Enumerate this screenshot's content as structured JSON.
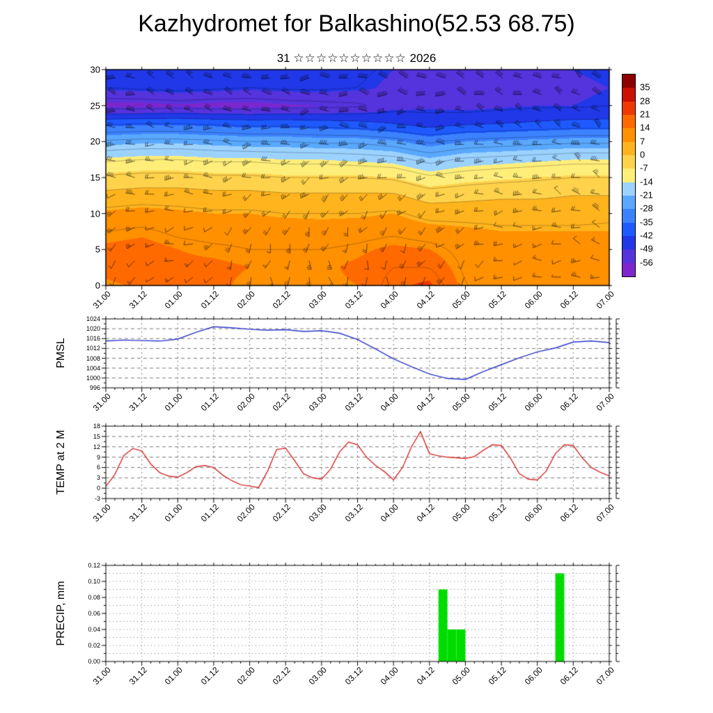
{
  "header": {
    "title": "Kazhydromet for Balkashino(52.53 68.75)",
    "day": "31",
    "stars": "☆☆☆☆☆☆☆☆☆☆",
    "year": "2026"
  },
  "time_axis": {
    "labels": [
      "31.00",
      "31.12",
      "01.00",
      "01.12",
      "02.00",
      "02.12",
      "03.00",
      "03.12",
      "04.00",
      "04.12",
      "05.00",
      "05.12",
      "06.00",
      "06.12",
      "07.00"
    ],
    "total_hours": 168,
    "major_step_hours": 12,
    "minor_step_hours": 3
  },
  "chart_data": [
    {
      "id": "cross_section",
      "type": "heatmap",
      "label": "",
      "ylim": [
        0,
        30
      ],
      "yticks": [
        0,
        5,
        10,
        15,
        20,
        25,
        30
      ],
      "heights": [
        0,
        2.5,
        5,
        7.5,
        10,
        12.5,
        15,
        17.5,
        20,
        22.5,
        25,
        27.5,
        30
      ],
      "temps_by_height_row": [
        [
          13,
          15,
          14,
          15,
          13,
          12,
          13,
          14,
          20,
          22,
          12,
          11,
          10,
          9,
          9
        ],
        [
          16,
          17,
          15,
          15,
          14,
          13,
          13,
          15,
          18,
          18,
          11,
          10,
          10,
          9,
          9
        ],
        [
          15,
          16,
          14,
          13,
          12,
          12,
          12,
          13,
          15,
          14,
          10,
          9,
          9,
          8,
          8
        ],
        [
          12,
          13,
          11,
          10,
          10,
          10,
          9,
          10,
          11,
          9,
          8,
          7,
          7,
          7,
          7
        ],
        [
          8,
          9,
          8,
          7,
          7,
          6,
          6,
          6,
          7,
          4,
          4,
          4,
          4,
          4,
          5
        ],
        [
          2,
          3,
          3,
          2,
          2,
          1,
          1,
          1,
          1,
          -3,
          -2,
          -1,
          -1,
          0,
          0
        ],
        [
          -5,
          -4,
          -4,
          -5,
          -5,
          -6,
          -6,
          -6,
          -7,
          -11,
          -9,
          -8,
          -7,
          -6,
          -6
        ],
        [
          -13,
          -12,
          -12,
          -13,
          -13,
          -14,
          -14,
          -15,
          -16,
          -20,
          -17,
          -16,
          -15,
          -14,
          -14
        ],
        [
          -23,
          -22,
          -22,
          -23,
          -24,
          -24,
          -25,
          -25,
          -27,
          -31,
          -28,
          -27,
          -26,
          -25,
          -25
        ],
        [
          -37,
          -36,
          -36,
          -37,
          -38,
          -38,
          -39,
          -40,
          -42,
          -45,
          -43,
          -42,
          -41,
          -40,
          -40
        ],
        [
          -58,
          -58,
          -57,
          -58,
          -58,
          -57,
          -56,
          -55,
          -51,
          -50,
          -51,
          -50,
          -49,
          -49,
          -48
        ],
        [
          -48,
          -47,
          -46,
          -47,
          -48,
          -47,
          -47,
          -48,
          -50,
          -53,
          -52,
          -51,
          -50,
          -50,
          -49
        ],
        [
          -45,
          -44,
          -44,
          -45,
          -46,
          -46,
          -46,
          -47,
          -49,
          -51,
          -51,
          -50,
          -49,
          -49,
          -48
        ]
      ],
      "wind_barbs": {
        "heights": [
          0,
          7.5,
          15,
          22.5,
          30
        ],
        "times_hours": [
          0,
          24,
          48,
          72,
          96,
          120,
          144,
          168
        ],
        "dirs_deg": [
          [
            210,
            230,
            190,
            160,
            180,
            210,
            260,
            280
          ],
          [
            240,
            255,
            220,
            200,
            210,
            240,
            275,
            290
          ],
          [
            265,
            270,
            250,
            235,
            245,
            265,
            285,
            300
          ],
          [
            280,
            285,
            270,
            260,
            268,
            278,
            292,
            302
          ],
          [
            290,
            292,
            284,
            278,
            286,
            292,
            298,
            306
          ]
        ],
        "speeds_kt": [
          [
            10,
            8,
            12,
            10,
            14,
            12,
            10,
            12
          ],
          [
            16,
            13,
            18,
            16,
            20,
            18,
            15,
            18
          ],
          [
            24,
            20,
            26,
            28,
            30,
            25,
            22,
            25
          ],
          [
            34,
            30,
            36,
            40,
            44,
            36,
            30,
            35
          ],
          [
            40,
            36,
            44,
            50,
            55,
            45,
            40,
            45
          ]
        ]
      },
      "colorbar": {
        "tick_labels": [
          "35",
          "28",
          "21",
          "14",
          "7",
          "0",
          "-7",
          "-14",
          "-21",
          "-28",
          "-35",
          "-42",
          "-49",
          "-56"
        ],
        "thresholds": [
          -56,
          -49,
          -42,
          -35,
          -28,
          -21,
          -14,
          -7,
          0,
          7,
          14,
          21,
          28,
          35
        ],
        "colors_low_to_high": [
          "#7d26cd",
          "#5533dd",
          "#2038e8",
          "#1e5aff",
          "#3c82ff",
          "#5aa8ff",
          "#9bd2ff",
          "#ffee7a",
          "#ffd24b",
          "#ffb41e",
          "#ff9000",
          "#ff6a00",
          "#f03800",
          "#cc1100",
          "#8f0000"
        ]
      },
      "contour_levels": [
        -54,
        -48,
        -42,
        -36,
        -30,
        -24,
        -18,
        -12,
        -6,
        0,
        6,
        12,
        18
      ]
    },
    {
      "id": "pmsl",
      "type": "line",
      "label": "PMSL",
      "line_color": "#2a35c8",
      "ylim": [
        996,
        1024
      ],
      "yticks": [
        996,
        1000,
        1004,
        1008,
        1012,
        1016,
        1020,
        1024
      ],
      "ytick_decimals": 0,
      "sample_step_hours": 6,
      "values": [
        1015.0,
        1015.4,
        1015.2,
        1015.0,
        1015.8,
        1018.5,
        1020.8,
        1020.4,
        1019.8,
        1019.4,
        1019.6,
        1018.9,
        1019.2,
        1018.2,
        1015.6,
        1011.8,
        1007.8,
        1004.6,
        1001.6,
        999.8,
        999.4,
        1002.6,
        1005.4,
        1008.2,
        1010.6,
        1012.2,
        1014.6,
        1015.0,
        1014.4
      ]
    },
    {
      "id": "temp_2m",
      "type": "line",
      "label": "TEMP at 2 M",
      "line_color": "#d42a2a",
      "ylim": [
        -3,
        18
      ],
      "yticks": [
        -3,
        0,
        3,
        6,
        9,
        12,
        15,
        18
      ],
      "ytick_decimals": 0,
      "sample_step_hours": 3,
      "values": [
        0.5,
        4.0,
        9.5,
        11.5,
        10.8,
        7.0,
        4.5,
        3.5,
        3.2,
        4.5,
        6.2,
        6.6,
        6.0,
        3.8,
        2.2,
        1.0,
        0.6,
        0.2,
        5.0,
        11.2,
        11.6,
        8.0,
        4.2,
        3.0,
        2.6,
        5.5,
        10.5,
        13.4,
        12.6,
        9.0,
        6.6,
        4.8,
        2.4,
        6.0,
        12.0,
        16.4,
        10.0,
        9.4,
        9.0,
        8.8,
        8.6,
        9.2,
        11.0,
        12.6,
        12.4,
        8.8,
        4.2,
        2.6,
        2.4,
        5.0,
        10.0,
        12.6,
        12.4,
        8.8,
        6.0,
        4.6,
        3.6
      ]
    },
    {
      "id": "precip",
      "type": "bar",
      "label": "PRECIP, mm",
      "bar_color": "#00dc00",
      "ylim": [
        0,
        0.12
      ],
      "yticks": [
        0,
        0.02,
        0.04,
        0.06,
        0.08,
        0.1,
        0.12
      ],
      "ytick_decimals": 2,
      "sample_step_hours": 3,
      "values": [
        0,
        0,
        0,
        0,
        0,
        0,
        0,
        0,
        0,
        0,
        0,
        0,
        0,
        0,
        0,
        0,
        0,
        0,
        0,
        0,
        0,
        0,
        0,
        0,
        0,
        0,
        0,
        0,
        0,
        0,
        0,
        0,
        0,
        0,
        0,
        0,
        0,
        0.09,
        0.04,
        0.04,
        0,
        0,
        0,
        0,
        0,
        0,
        0,
        0,
        0,
        0,
        0.11,
        0,
        0,
        0,
        0,
        0,
        0
      ]
    }
  ]
}
